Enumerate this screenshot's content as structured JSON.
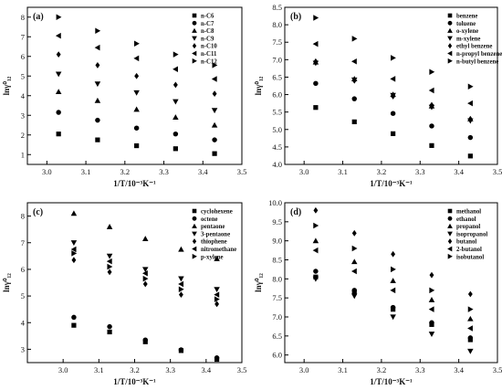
{
  "chart_data": [
    {
      "type": "scatter",
      "panel_label": "(a)",
      "xlabel": "1/T/10⁻³K⁻¹",
      "ylabel": "lnγ⁰₁₂",
      "xlim": [
        2.95,
        3.5
      ],
      "ylim": [
        0.5,
        8.5
      ],
      "xticks": [
        "3.0",
        "3.1",
        "3.2",
        "3.3",
        "3.4",
        "3.5"
      ],
      "yticks": [
        "1",
        "2",
        "3",
        "4",
        "5",
        "6",
        "7",
        "8"
      ],
      "legend_position": "top-right",
      "series": [
        {
          "name": "n-C6",
          "marker": "square",
          "x": [
            3.03,
            3.13,
            3.23,
            3.33,
            3.43
          ],
          "y": [
            2.05,
            1.75,
            1.45,
            1.3,
            1.05
          ]
        },
        {
          "name": "n-C7",
          "marker": "circle",
          "x": [
            3.03,
            3.13,
            3.23,
            3.33,
            3.43
          ],
          "y": [
            3.15,
            2.75,
            2.35,
            2.05,
            1.75
          ]
        },
        {
          "name": "n-C8",
          "marker": "triangle-up",
          "x": [
            3.03,
            3.13,
            3.23,
            3.33,
            3.43
          ],
          "y": [
            4.2,
            3.75,
            3.3,
            2.9,
            2.5
          ]
        },
        {
          "name": "n-C9",
          "marker": "triangle-down",
          "x": [
            3.03,
            3.13,
            3.23,
            3.33,
            3.43
          ],
          "y": [
            5.1,
            4.6,
            4.15,
            3.7,
            3.25
          ]
        },
        {
          "name": "n-C10",
          "marker": "diamond",
          "x": [
            3.03,
            3.13,
            3.23,
            3.33,
            3.43
          ],
          "y": [
            6.1,
            5.55,
            5.0,
            4.55,
            4.1
          ]
        },
        {
          "name": "n-C11",
          "marker": "triangle-left",
          "x": [
            3.03,
            3.13,
            3.23,
            3.33,
            3.43
          ],
          "y": [
            7.05,
            6.45,
            5.9,
            5.35,
            4.85
          ]
        },
        {
          "name": "n-C12",
          "marker": "triangle-right",
          "x": [
            3.03,
            3.13,
            3.23,
            3.33,
            3.43
          ],
          "y": [
            8.0,
            7.3,
            6.65,
            6.1,
            5.55
          ]
        }
      ]
    },
    {
      "type": "scatter",
      "panel_label": "(b)",
      "xlabel": "1/T/10⁻³K⁻¹",
      "ylabel": "lnγ⁰₁₂",
      "xlim": [
        2.95,
        3.5
      ],
      "ylim": [
        4.0,
        8.5
      ],
      "xticks": [
        "3.0",
        "3.1",
        "3.2",
        "3.3",
        "3.4",
        "3.5"
      ],
      "yticks": [
        "4.0",
        "4.5",
        "5.0",
        "5.5",
        "6.0",
        "6.5",
        "7.0",
        "7.5",
        "8.0",
        "8.5"
      ],
      "legend_position": "top-right",
      "series": [
        {
          "name": "benzene",
          "marker": "square",
          "x": [
            3.03,
            3.13,
            3.23,
            3.33,
            3.43
          ],
          "y": [
            5.63,
            5.22,
            4.88,
            4.54,
            4.24
          ]
        },
        {
          "name": "toluene",
          "marker": "circle",
          "x": [
            3.03,
            3.13,
            3.23,
            3.33,
            3.43
          ],
          "y": [
            6.32,
            5.88,
            5.46,
            5.1,
            4.77
          ]
        },
        {
          "name": "o-xylene",
          "marker": "triangle-up",
          "x": [
            3.03,
            3.13,
            3.23,
            3.33,
            3.43
          ],
          "y": [
            6.93,
            6.45,
            6.0,
            5.67,
            5.3
          ]
        },
        {
          "name": "m-xylene",
          "marker": "triangle-down",
          "x": [
            3.03,
            3.13,
            3.23,
            3.33,
            3.43
          ],
          "y": [
            6.9,
            6.42,
            5.98,
            5.64,
            5.25
          ]
        },
        {
          "name": "ethyl benzene",
          "marker": "diamond",
          "x": [
            3.03,
            3.13,
            3.23,
            3.33,
            3.43
          ],
          "y": [
            6.95,
            6.4,
            5.95,
            5.7,
            5.3
          ]
        },
        {
          "name": "n-propyl benzene",
          "marker": "triangle-left",
          "x": [
            3.03,
            3.13,
            3.23,
            3.33,
            3.43
          ],
          "y": [
            7.45,
            6.95,
            6.45,
            6.12,
            5.75
          ]
        },
        {
          "name": "n-butyl benzene",
          "marker": "triangle-right",
          "x": [
            3.03,
            3.13,
            3.23,
            3.33,
            3.43
          ],
          "y": [
            8.2,
            7.6,
            7.05,
            6.65,
            6.23
          ]
        }
      ]
    },
    {
      "type": "scatter",
      "panel_label": "(c)",
      "xlabel": "1/T/10⁻³K⁻¹",
      "ylabel": "lnγ⁰₁₂",
      "xlim": [
        2.9,
        3.5
      ],
      "ylim": [
        2.5,
        8.5
      ],
      "xticks": [
        "3.0",
        "3.1",
        "3.2",
        "3.3",
        "3.4",
        "3.5"
      ],
      "yticks": [
        "3",
        "4",
        "5",
        "6",
        "7",
        "8"
      ],
      "legend_position": "top-right",
      "series": [
        {
          "name": "cyclohexene",
          "marker": "square",
          "x": [
            3.03,
            3.13,
            3.23,
            3.33,
            3.43
          ],
          "y": [
            3.9,
            3.65,
            3.28,
            2.95,
            2.62
          ]
        },
        {
          "name": "octene",
          "marker": "circle",
          "x": [
            3.03,
            3.13,
            3.23,
            3.33,
            3.43
          ],
          "y": [
            4.2,
            3.85,
            3.35,
            2.98,
            2.68
          ]
        },
        {
          "name": "pentaone",
          "marker": "triangle-up",
          "x": [
            3.03,
            3.13,
            3.23,
            3.33,
            3.43
          ],
          "y": [
            8.1,
            7.6,
            7.15,
            6.75,
            6.4
          ]
        },
        {
          "name": "3-pentaone",
          "marker": "triangle-down",
          "x": [
            3.03,
            3.13,
            3.23,
            3.33,
            3.43
          ],
          "y": [
            7.0,
            6.5,
            6.0,
            5.65,
            5.25
          ]
        },
        {
          "name": "thiophene",
          "marker": "diamond",
          "x": [
            3.03,
            3.13,
            3.23,
            3.33,
            3.43
          ],
          "y": [
            6.35,
            5.9,
            5.45,
            5.05,
            4.7
          ]
        },
        {
          "name": "nitromethane",
          "marker": "triangle-left",
          "x": [
            3.03,
            3.13,
            3.23,
            3.33,
            3.43
          ],
          "y": [
            6.75,
            6.3,
            5.85,
            5.45,
            5.05
          ]
        },
        {
          "name": "p-xylene",
          "marker": "triangle-right",
          "x": [
            3.03,
            3.13,
            3.23,
            3.33,
            3.43
          ],
          "y": [
            6.6,
            6.1,
            5.65,
            5.25,
            4.88
          ]
        }
      ]
    },
    {
      "type": "scatter",
      "panel_label": "(d)",
      "xlabel": "1/T/10⁻³K⁻¹",
      "ylabel": "lnγ⁰₁₂",
      "xlim": [
        2.95,
        3.5
      ],
      "ylim": [
        5.8,
        10.0
      ],
      "xticks": [
        "3.0",
        "3.1",
        "3.2",
        "3.3",
        "3.4",
        "3.5"
      ],
      "yticks": [
        "6.0",
        "6.5",
        "7.0",
        "7.5",
        "8.0",
        "8.5",
        "9.0",
        "9.5",
        "10.0"
      ],
      "legend_position": "top-right",
      "series": [
        {
          "name": "methanol",
          "marker": "square",
          "x": [
            3.03,
            3.13,
            3.23,
            3.33,
            3.43
          ],
          "y": [
            8.05,
            7.65,
            7.2,
            6.8,
            6.4
          ]
        },
        {
          "name": "ethanol",
          "marker": "circle",
          "x": [
            3.03,
            3.13,
            3.23,
            3.33,
            3.43
          ],
          "y": [
            8.2,
            7.7,
            7.25,
            6.85,
            6.45
          ]
        },
        {
          "name": "propanol",
          "marker": "triangle-up",
          "x": [
            3.03,
            3.13,
            3.23,
            3.33,
            3.43
          ],
          "y": [
            9.0,
            8.45,
            7.95,
            7.45,
            6.95
          ]
        },
        {
          "name": "isopropanol",
          "marker": "triangle-down",
          "x": [
            3.03,
            3.13,
            3.23,
            3.33,
            3.43
          ],
          "y": [
            8.0,
            7.55,
            7.0,
            6.55,
            6.1
          ]
        },
        {
          "name": "butanol",
          "marker": "diamond",
          "x": [
            3.03,
            3.13,
            3.23,
            3.33,
            3.43
          ],
          "y": [
            9.8,
            9.2,
            8.65,
            8.1,
            7.6
          ]
        },
        {
          "name": "2-butanol",
          "marker": "triangle-left",
          "x": [
            3.03,
            3.13,
            3.23,
            3.33,
            3.43
          ],
          "y": [
            8.75,
            8.2,
            7.7,
            7.2,
            6.7
          ]
        },
        {
          "name": "isobutanol",
          "marker": "triangle-right",
          "x": [
            3.03,
            3.13,
            3.23,
            3.33,
            3.43
          ],
          "y": [
            9.4,
            8.8,
            8.25,
            7.7,
            7.2
          ]
        }
      ]
    }
  ]
}
